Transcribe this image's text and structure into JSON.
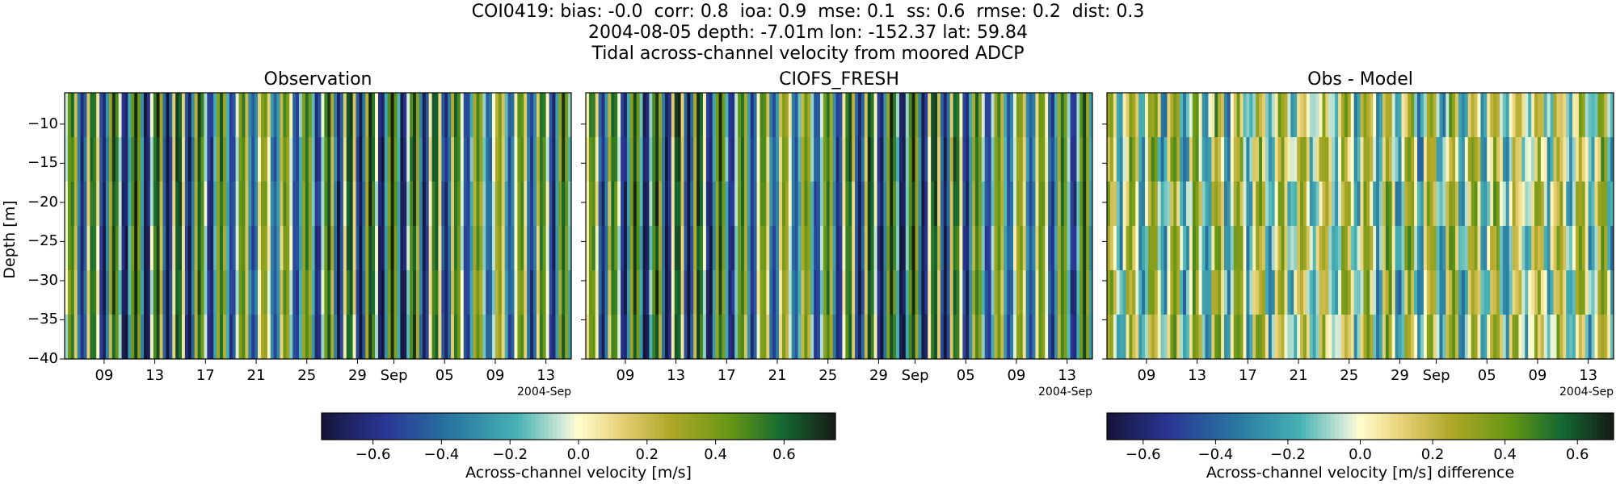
{
  "figure": {
    "title_lines": [
      "COI0419: bias: -0.0  corr: 0.8  ioa: 0.9  mse: 0.1  ss: 0.6  rmse: 0.2  dist: 0.3",
      "2004-08-05 depth: -7.01m lon: -152.37 lat: 59.84",
      "Tidal across-channel velocity from moored ADCP"
    ]
  },
  "chart_data": [
    {
      "type": "heatmap",
      "title": "Observation",
      "ylabel": "Depth [m]",
      "ylim": [
        -40,
        -6
      ],
      "yticks": [
        -10,
        -15,
        -20,
        -25,
        -30,
        -35,
        -40
      ],
      "xtick_labels": [
        "09",
        "13",
        "17",
        "21",
        "25",
        "29",
        "Sep",
        "05",
        "09",
        "13"
      ],
      "x_offset_label": "2004-Sep",
      "colormap": "delta",
      "clim": [
        -0.75,
        0.75
      ],
      "colorbar_label": "Across-channel velocity [m/s]",
      "colorbar_ticks": [
        "−0.6",
        "−0.4",
        "−0.2",
        "0.0",
        "0.2",
        "0.4",
        "0.6"
      ]
    },
    {
      "type": "heatmap",
      "title": "CIOFS_FRESH",
      "ylim": [
        -40,
        -6
      ],
      "xtick_labels": [
        "09",
        "13",
        "17",
        "21",
        "25",
        "29",
        "Sep",
        "05",
        "09",
        "13"
      ],
      "x_offset_label": "2004-Sep",
      "colormap": "delta",
      "clim": [
        -0.75,
        0.75
      ]
    },
    {
      "type": "heatmap",
      "title": "Obs - Model",
      "ylim": [
        -40,
        -6
      ],
      "xtick_labels": [
        "09",
        "13",
        "17",
        "21",
        "25",
        "29",
        "Sep",
        "05",
        "09",
        "13"
      ],
      "x_offset_label": "2004-Sep",
      "colormap": "delta",
      "clim": [
        -0.7,
        0.7
      ],
      "colorbar_label": "Across-channel velocity [m/s] difference",
      "colorbar_ticks": [
        "−0.6",
        "−0.4",
        "−0.2",
        "0.0",
        "0.2",
        "0.4",
        "0.6"
      ]
    }
  ]
}
